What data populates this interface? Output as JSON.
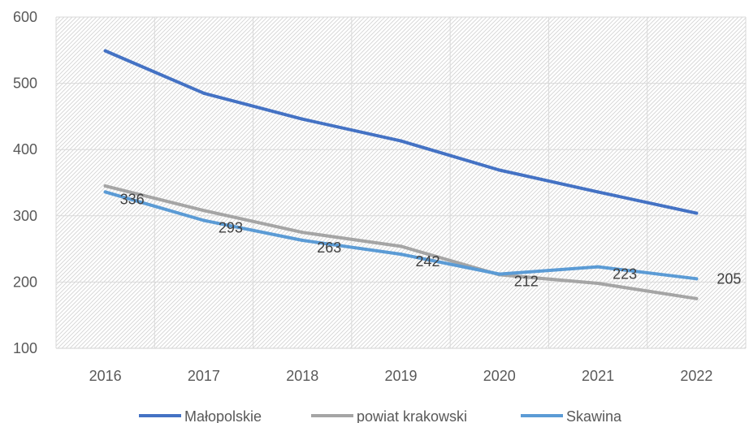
{
  "chart_data": {
    "type": "line",
    "categories": [
      "2016",
      "2017",
      "2018",
      "2019",
      "2020",
      "2021",
      "2022"
    ],
    "series": [
      {
        "name": "Małopolskie",
        "values": [
          549,
          485,
          446,
          413,
          369,
          336,
          304
        ],
        "color": "#4472C4",
        "show_labels": false
      },
      {
        "name": "powiat krakowski",
        "values": [
          345,
          308,
          275,
          254,
          211,
          198,
          175
        ],
        "color": "#A5A5A5",
        "show_labels": false
      },
      {
        "name": "Skawina",
        "values": [
          336,
          293,
          263,
          242,
          212,
          223,
          205
        ],
        "color": "#5B9BD5",
        "show_labels": true
      }
    ],
    "title": "",
    "xlabel": "",
    "ylabel": "",
    "ylim": [
      100,
      600
    ],
    "yticks": [
      "100",
      "200",
      "300",
      "400",
      "500",
      "600"
    ],
    "grid": true,
    "plot_background": "hatched",
    "legend_position": "bottom"
  }
}
